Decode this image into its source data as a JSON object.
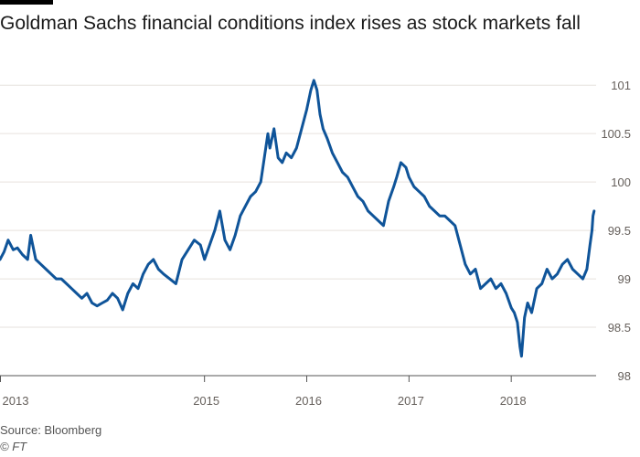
{
  "chart_data": {
    "type": "line",
    "title": "Goldman Sachs financial conditions index rises as stock markets fall",
    "xlabel": "",
    "ylabel": "",
    "x_tick_labels": [
      "2013",
      "2015",
      "2016",
      "2017",
      "2018"
    ],
    "x_tick_positions": [
      2013.0,
      2015.0,
      2016.0,
      2017.0,
      2018.0
    ],
    "xlim": [
      2013.0,
      2018.83
    ],
    "y_tick_labels": [
      "98",
      "98.5",
      "99",
      "99.5",
      "100",
      "100.5",
      "101"
    ],
    "y_tick_values": [
      98,
      98.5,
      99,
      99.5,
      100,
      100.5,
      101
    ],
    "ylim": [
      98,
      101.2
    ],
    "grid": true,
    "series": [
      {
        "name": "Goldman Sachs financial conditions index",
        "color": "#0f5499",
        "x": [
          2013.0,
          2013.04,
          2013.08,
          2013.13,
          2013.17,
          2013.22,
          2013.27,
          2013.3,
          2013.35,
          2013.4,
          2013.45,
          2013.5,
          2013.55,
          2013.6,
          2013.65,
          2013.7,
          2013.75,
          2013.8,
          2013.85,
          2013.9,
          2013.95,
          2014.0,
          2014.05,
          2014.1,
          2014.15,
          2014.2,
          2014.25,
          2014.3,
          2014.35,
          2014.4,
          2014.45,
          2014.5,
          2014.55,
          2014.6,
          2014.66,
          2014.72,
          2014.78,
          2014.84,
          2014.9,
          2014.96,
          2015.0,
          2015.05,
          2015.1,
          2015.15,
          2015.2,
          2015.25,
          2015.3,
          2015.35,
          2015.4,
          2015.45,
          2015.5,
          2015.55,
          2015.62,
          2015.64,
          2015.68,
          2015.72,
          2015.76,
          2015.8,
          2015.85,
          2015.9,
          2015.95,
          2016.0,
          2016.04,
          2016.07,
          2016.1,
          2016.13,
          2016.16,
          2016.2,
          2016.25,
          2016.3,
          2016.35,
          2016.4,
          2016.45,
          2016.5,
          2016.55,
          2016.6,
          2016.65,
          2016.7,
          2016.75,
          2016.8,
          2016.85,
          2016.88,
          2016.92,
          2016.97,
          2017.0,
          2017.05,
          2017.1,
          2017.15,
          2017.2,
          2017.25,
          2017.3,
          2017.35,
          2017.4,
          2017.45,
          2017.5,
          2017.55,
          2017.6,
          2017.65,
          2017.7,
          2017.75,
          2017.8,
          2017.85,
          2017.9,
          2017.95,
          2018.0,
          2018.03,
          2018.06,
          2018.085,
          2018.1,
          2018.13,
          2018.16,
          2018.2,
          2018.25,
          2018.3,
          2018.35,
          2018.4,
          2018.45,
          2018.5,
          2018.55,
          2018.6,
          2018.65,
          2018.7,
          2018.74,
          2018.77,
          2018.79,
          2018.8,
          2018.81
        ],
        "values": [
          99.2,
          99.28,
          99.4,
          99.3,
          99.32,
          99.25,
          99.2,
          99.45,
          99.2,
          99.15,
          99.1,
          99.05,
          99.0,
          99.0,
          98.95,
          98.9,
          98.85,
          98.8,
          98.85,
          98.75,
          98.72,
          98.75,
          98.78,
          98.85,
          98.8,
          98.68,
          98.85,
          98.95,
          98.9,
          99.05,
          99.15,
          99.2,
          99.1,
          99.05,
          99.0,
          98.95,
          99.2,
          99.3,
          99.4,
          99.35,
          99.2,
          99.35,
          99.5,
          99.7,
          99.4,
          99.3,
          99.45,
          99.65,
          99.75,
          99.85,
          99.9,
          100.0,
          100.5,
          100.35,
          100.55,
          100.25,
          100.2,
          100.3,
          100.25,
          100.35,
          100.55,
          100.75,
          100.95,
          101.05,
          100.95,
          100.7,
          100.55,
          100.45,
          100.3,
          100.2,
          100.1,
          100.05,
          99.95,
          99.85,
          99.8,
          99.7,
          99.65,
          99.6,
          99.55,
          99.8,
          99.95,
          100.05,
          100.2,
          100.15,
          100.05,
          99.95,
          99.9,
          99.85,
          99.75,
          99.7,
          99.65,
          99.65,
          99.6,
          99.55,
          99.35,
          99.15,
          99.05,
          99.1,
          98.9,
          98.95,
          99.0,
          98.9,
          98.95,
          98.85,
          98.7,
          98.65,
          98.55,
          98.3,
          98.2,
          98.6,
          98.75,
          98.65,
          98.9,
          98.95,
          99.1,
          99.0,
          99.05,
          99.15,
          99.2,
          99.1,
          99.05,
          99.0,
          99.1,
          99.35,
          99.5,
          99.65,
          99.7
        ]
      }
    ],
    "annotations": []
  },
  "footer": {
    "source": "Source: Bloomberg",
    "credit": "© FT"
  }
}
